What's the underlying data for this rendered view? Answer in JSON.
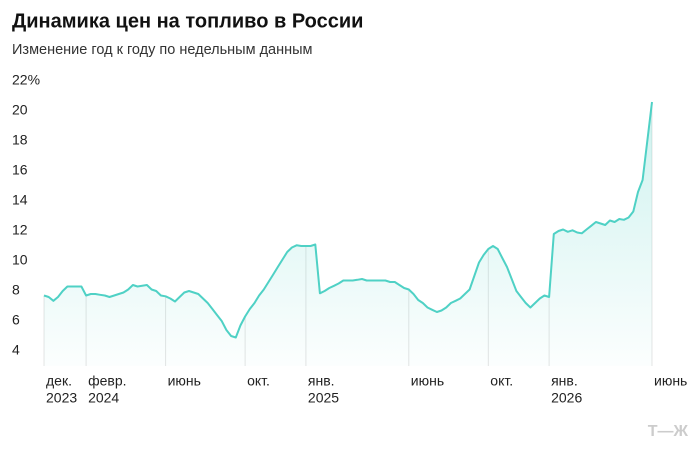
{
  "chart_data": {
    "type": "line",
    "title": "Динамика цен на топливо в России",
    "subtitle": "Изменение год к году по недельным данным",
    "watermark": "Т—Ж",
    "color": "#4fd1c5",
    "values": [
      7.7,
      7.6,
      7.35,
      7.6,
      8.0,
      8.3,
      8.3,
      8.3,
      8.3,
      7.7,
      7.8,
      7.8,
      7.75,
      7.7,
      7.6,
      7.7,
      7.8,
      7.9,
      8.1,
      8.4,
      8.3,
      8.35,
      8.4,
      8.1,
      8.0,
      7.7,
      7.65,
      7.5,
      7.3,
      7.6,
      7.9,
      8.0,
      7.9,
      7.8,
      7.5,
      7.2,
      6.8,
      6.4,
      6.0,
      5.4,
      5.0,
      4.9,
      5.7,
      6.3,
      6.8,
      7.2,
      7.7,
      8.1,
      8.6,
      9.1,
      9.6,
      10.1,
      10.6,
      10.9,
      11.05,
      11.0,
      11.0,
      11.0,
      11.1,
      7.85,
      8.0,
      8.2,
      8.35,
      8.5,
      8.7,
      8.7,
      8.7,
      8.75,
      8.8,
      8.7,
      8.7,
      8.7,
      8.7,
      8.7,
      8.6,
      8.6,
      8.4,
      8.2,
      8.1,
      7.8,
      7.4,
      7.2,
      6.9,
      6.75,
      6.6,
      6.7,
      6.9,
      7.2,
      7.35,
      7.5,
      7.8,
      8.1,
      9.0,
      9.9,
      10.4,
      10.8,
      11.0,
      10.8,
      10.2,
      9.6,
      8.8,
      8.0,
      7.6,
      7.2,
      6.9,
      7.2,
      7.5,
      7.7,
      7.6,
      11.8,
      12.0,
      12.1,
      11.95,
      12.05,
      11.9,
      11.85,
      12.1,
      12.35,
      12.6,
      12.5,
      12.4,
      12.7,
      12.6,
      12.8,
      12.75,
      12.9,
      13.3,
      14.6,
      15.4,
      18.0,
      20.6
    ],
    "ylim": [
      3,
      22
    ],
    "yticks": [
      4,
      6,
      8,
      10,
      12,
      14,
      16,
      18,
      20,
      {
        "value": 22,
        "label": "22%"
      }
    ],
    "xticks": [
      {
        "value": 0,
        "label": "дек.",
        "year": "2023"
      },
      {
        "value": 9,
        "label": "февр.",
        "year": "2024"
      },
      {
        "value": 26,
        "label": "июнь"
      },
      {
        "value": 43,
        "label": "окт."
      },
      {
        "value": 56,
        "label": "янв.",
        "year": "2025"
      },
      {
        "value": 78,
        "label": "июнь"
      },
      {
        "value": 95,
        "label": "окт."
      },
      {
        "value": 108,
        "label": "янв.",
        "year": "2026"
      },
      {
        "value": 130,
        "label": "июнь"
      }
    ],
    "grid": false
  }
}
